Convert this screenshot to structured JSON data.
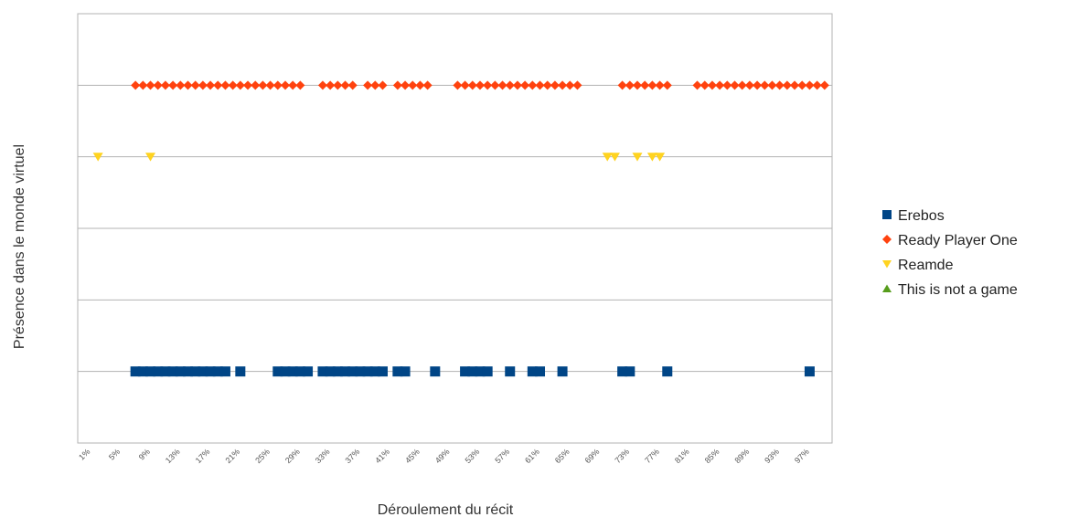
{
  "chart_data": {
    "type": "scatter",
    "title": "",
    "xlabel": "Déroulement du récit",
    "ylabel": "Présence dans le monde virtuel",
    "x_unit": "%",
    "xlim": [
      1,
      100
    ],
    "x_ticks": [
      "1%",
      "5%",
      "9%",
      "13%",
      "17%",
      "21%",
      "25%",
      "29%",
      "33%",
      "37%",
      "41%",
      "45%",
      "49%",
      "53%",
      "57%",
      "61%",
      "65%",
      "69%",
      "73%",
      "77%",
      "81%",
      "85%",
      "89%",
      "93%",
      "97%"
    ],
    "ylim": [
      0,
      6
    ],
    "grid": true,
    "legend_position": "right",
    "series": [
      {
        "name": "Erebos",
        "marker": "square",
        "color": "#004586",
        "y": 1,
        "x": [
          7,
          8,
          9,
          10,
          11,
          12,
          13,
          14,
          15,
          16,
          17,
          18,
          19,
          21,
          26,
          27,
          28,
          29,
          30,
          32,
          33,
          34,
          35,
          36,
          37,
          38,
          39,
          40,
          42,
          43,
          47,
          51,
          52,
          53,
          54,
          57,
          60,
          61,
          64,
          72,
          73,
          78,
          97
        ]
      },
      {
        "name": "Ready Player One",
        "marker": "diamond",
        "color": "#ff420e",
        "y": 5,
        "x": [
          7,
          8,
          9,
          10,
          11,
          12,
          13,
          14,
          15,
          16,
          17,
          18,
          19,
          20,
          21,
          22,
          23,
          24,
          25,
          26,
          27,
          28,
          29,
          32,
          33,
          34,
          35,
          36,
          38,
          39,
          40,
          42,
          43,
          44,
          45,
          46,
          50,
          51,
          52,
          53,
          54,
          55,
          56,
          57,
          58,
          59,
          60,
          61,
          62,
          63,
          64,
          65,
          66,
          72,
          73,
          74,
          75,
          76,
          77,
          78,
          82,
          83,
          84,
          85,
          86,
          87,
          88,
          89,
          90,
          91,
          92,
          93,
          94,
          95,
          96,
          97,
          98,
          99
        ]
      },
      {
        "name": "Reamde",
        "marker": "triangle-down",
        "color": "#ffd320",
        "y": 4,
        "x": [
          2,
          9,
          70,
          71,
          74,
          76,
          77
        ]
      },
      {
        "name": "This is not a game",
        "marker": "triangle-up",
        "color": "#579d1c",
        "y": 2,
        "x": []
      }
    ]
  }
}
